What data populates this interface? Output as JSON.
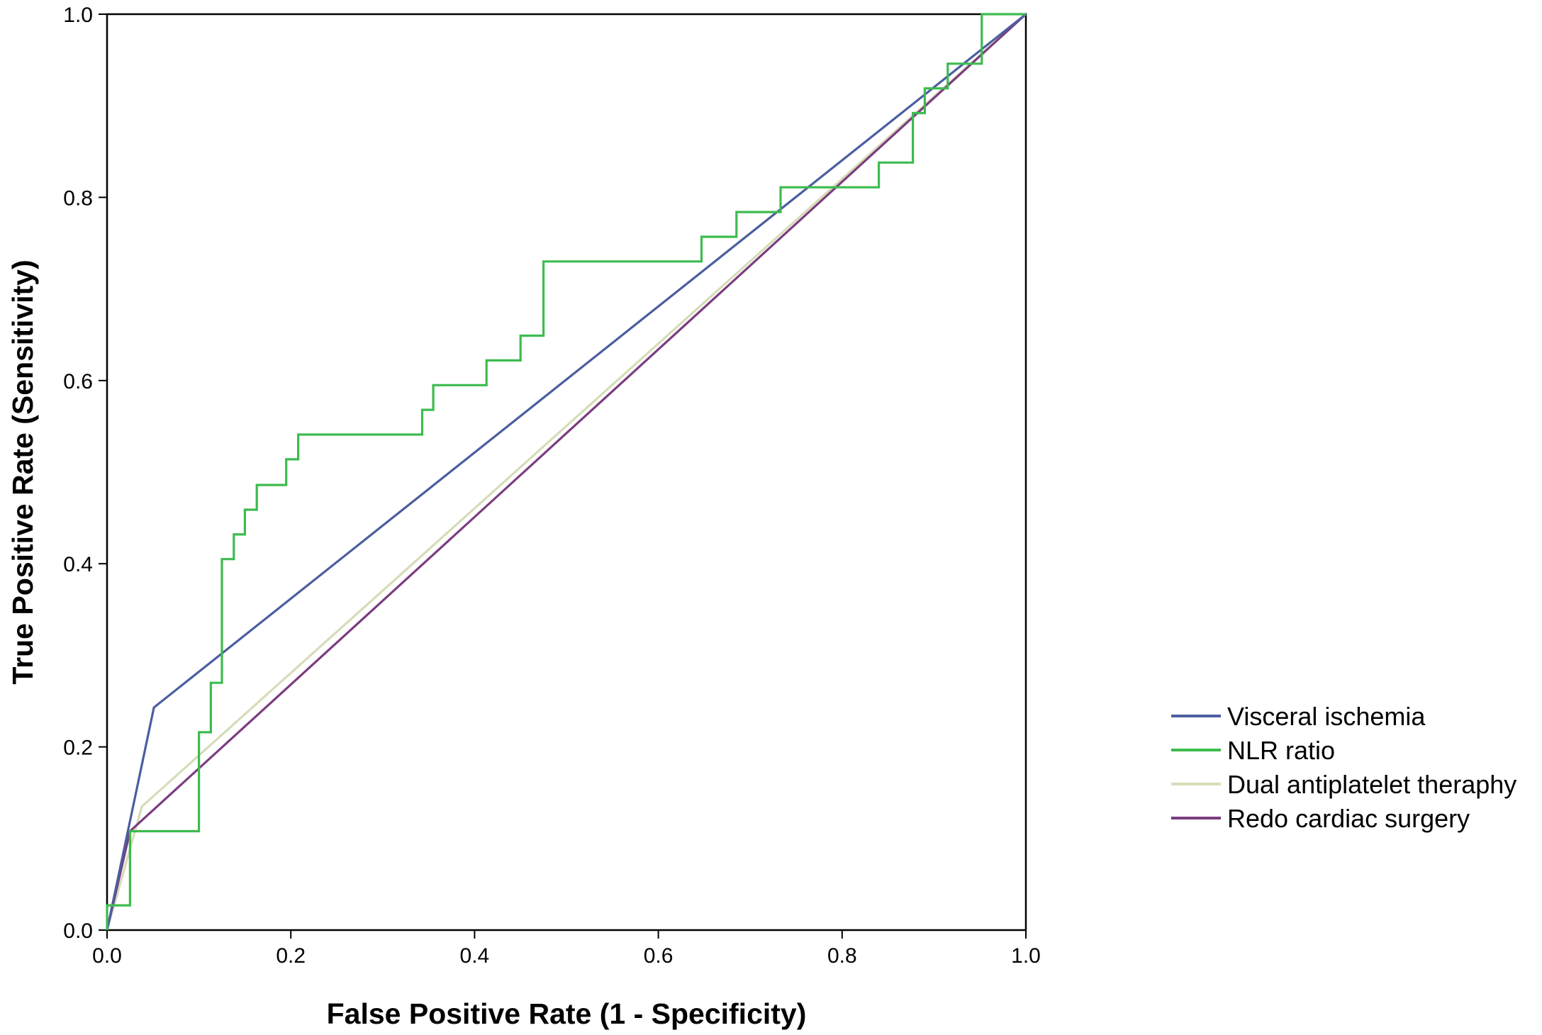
{
  "chart_data": {
    "type": "line",
    "xlabel": "False Positive Rate (1 - Specificity)",
    "ylabel": "True Positive Rate (Sensitivity)",
    "xlim": [
      0,
      1
    ],
    "ylim": [
      0,
      1
    ],
    "xticks": [
      "0.0",
      "0.2",
      "0.4",
      "0.6",
      "0.8",
      "1.0"
    ],
    "yticks": [
      "0.0",
      "0.2",
      "0.4",
      "0.6",
      "0.8",
      "1.0"
    ],
    "grid": false,
    "legend_position": "right",
    "series": [
      {
        "name": "Visceral ischemia",
        "color": "#4b5ea0",
        "x": [
          0,
          0.051,
          1
        ],
        "y": [
          0,
          0.243,
          1
        ]
      },
      {
        "name": "NLR ratio",
        "color": "#3dbb4f",
        "x": [
          0,
          0,
          0.025,
          0.025,
          0.1,
          0.1,
          0.113,
          0.113,
          0.125,
          0.125,
          0.138,
          0.138,
          0.15,
          0.15,
          0.163,
          0.163,
          0.195,
          0.195,
          0.208,
          0.208,
          0.343,
          0.343,
          0.355,
          0.355,
          0.413,
          0.413,
          0.45,
          0.45,
          0.475,
          0.475,
          0.647,
          0.647,
          0.685,
          0.685,
          0.733,
          0.733,
          0.75,
          0.75,
          0.84,
          0.84,
          0.877,
          0.877,
          0.89,
          0.89,
          0.915,
          0.915,
          0.952,
          0.952,
          1
        ],
        "y": [
          0,
          0.027,
          0.027,
          0.108,
          0.108,
          0.216,
          0.216,
          0.27,
          0.27,
          0.405,
          0.405,
          0.432,
          0.432,
          0.459,
          0.459,
          0.486,
          0.486,
          0.514,
          0.514,
          0.541,
          0.541,
          0.568,
          0.568,
          0.595,
          0.595,
          0.622,
          0.622,
          0.649,
          0.649,
          0.73,
          0.73,
          0.757,
          0.757,
          0.784,
          0.784,
          0.811,
          0.811,
          0.811,
          0.811,
          0.838,
          0.838,
          0.892,
          0.892,
          0.919,
          0.919,
          0.946,
          0.946,
          1,
          1
        ]
      },
      {
        "name": "Dual antiplatelet theraphy",
        "color": "#d6dcb8",
        "x": [
          0,
          0.038,
          1
        ],
        "y": [
          0,
          0.135,
          1
        ]
      },
      {
        "name": "Redo cardiac surgery",
        "color": "#7b3c80",
        "x": [
          0,
          0.025,
          1
        ],
        "y": [
          0,
          0.108,
          1
        ]
      }
    ]
  }
}
